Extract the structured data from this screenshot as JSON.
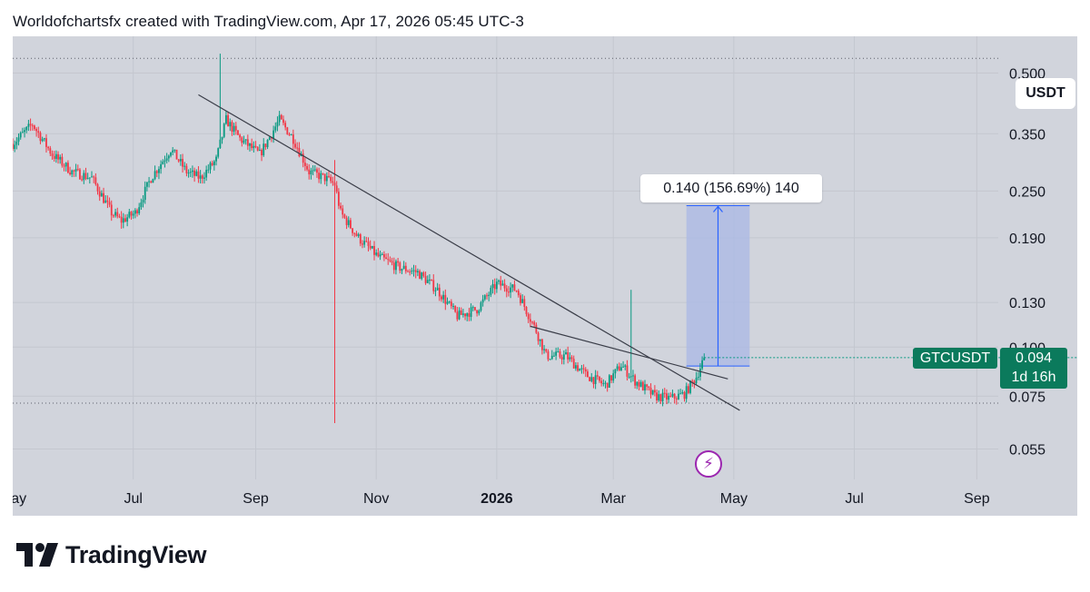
{
  "header": {
    "text": "Worldofchartsfx created with TradingView.com, Apr 17, 2026 05:45 UTC-3"
  },
  "unit_label": "USDT",
  "ticker": {
    "symbol": "GTCUSDT",
    "price": "0.094",
    "countdown": "1d 16h"
  },
  "measure": {
    "label": "0.140 (156.69%) 140"
  },
  "footer": {
    "brand": "TradingView"
  },
  "icons": {
    "event": "lightning-icon",
    "logo": "tradingview-logo-icon"
  },
  "colors": {
    "background": "#d1d4dc",
    "up": "#089981",
    "down": "#f23645",
    "ticker_bg": "#0b7a5c",
    "measure_fill": "#a9b8e6",
    "measure_line": "#2962ff",
    "trendline": "#3a3d48",
    "event": "#9c27b0"
  },
  "chart_data": {
    "type": "candlestick",
    "title": "GTCUSDT",
    "scale": "log",
    "ylim": [
      0.046,
      0.62
    ],
    "y_ticks": [
      {
        "value": 0.5,
        "label": "0.500"
      },
      {
        "value": 0.35,
        "label": "0.350"
      },
      {
        "value": 0.25,
        "label": "0.250"
      },
      {
        "value": 0.19,
        "label": "0.190"
      },
      {
        "value": 0.13,
        "label": "0.130"
      },
      {
        "value": 0.1,
        "label": "0.100"
      },
      {
        "value": 0.075,
        "label": "0.075"
      },
      {
        "value": 0.055,
        "label": "0.055"
      }
    ],
    "x_ticks": [
      {
        "label": "May",
        "day": 0
      },
      {
        "label": "Jul",
        "day": 61
      },
      {
        "label": "Sep",
        "day": 123
      },
      {
        "label": "Nov",
        "day": 184
      },
      {
        "label": "2026",
        "day": 245,
        "bold": true
      },
      {
        "label": "Mar",
        "day": 304
      },
      {
        "label": "May",
        "day": 365
      },
      {
        "label": "Jul",
        "day": 426
      },
      {
        "label": "Sep",
        "day": 488
      }
    ],
    "first_day": 0,
    "last_day": 350,
    "reference_lines": [
      0.545,
      0.072
    ],
    "path": [
      [
        0,
        0.33
      ],
      [
        10,
        0.37
      ],
      [
        20,
        0.31
      ],
      [
        30,
        0.28
      ],
      [
        40,
        0.27
      ],
      [
        50,
        0.22
      ],
      [
        55,
        0.21
      ],
      [
        62,
        0.22
      ],
      [
        70,
        0.27
      ],
      [
        80,
        0.32
      ],
      [
        88,
        0.28
      ],
      [
        95,
        0.27
      ],
      [
        103,
        0.3
      ],
      [
        108,
        0.38
      ],
      [
        115,
        0.34
      ],
      [
        125,
        0.31
      ],
      [
        135,
        0.38
      ],
      [
        142,
        0.34
      ],
      [
        150,
        0.28
      ],
      [
        158,
        0.27
      ],
      [
        163,
        0.26
      ],
      [
        166,
        0.22
      ],
      [
        175,
        0.19
      ],
      [
        185,
        0.17
      ],
      [
        195,
        0.16
      ],
      [
        205,
        0.155
      ],
      [
        215,
        0.14
      ],
      [
        225,
        0.12
      ],
      [
        235,
        0.125
      ],
      [
        245,
        0.145
      ],
      [
        255,
        0.14
      ],
      [
        265,
        0.11
      ],
      [
        270,
        0.095
      ],
      [
        280,
        0.095
      ],
      [
        290,
        0.085
      ],
      [
        300,
        0.08
      ],
      [
        308,
        0.09
      ],
      [
        315,
        0.082
      ],
      [
        325,
        0.075
      ],
      [
        333,
        0.074
      ],
      [
        340,
        0.076
      ],
      [
        346,
        0.084
      ],
      [
        350,
        0.094
      ]
    ],
    "spikes": [
      {
        "day": 105,
        "high": 0.56
      },
      {
        "day": 163,
        "high": 0.3,
        "low": 0.064
      },
      {
        "day": 313,
        "high": 0.14
      }
    ],
    "trendlines": [
      {
        "from": {
          "day": 94,
          "price": 0.44
        },
        "to": {
          "day": 368,
          "price": 0.069
        }
      },
      {
        "from": {
          "day": 262,
          "price": 0.113
        },
        "to": {
          "day": 362,
          "price": 0.083
        }
      }
    ],
    "measure_range": {
      "day_start": 341,
      "day_end": 373,
      "price_from": 0.0895,
      "price_to": 0.2295,
      "change": 0.14,
      "percent": 156.69,
      "bars": 140
    },
    "last_price": 0.094
  }
}
